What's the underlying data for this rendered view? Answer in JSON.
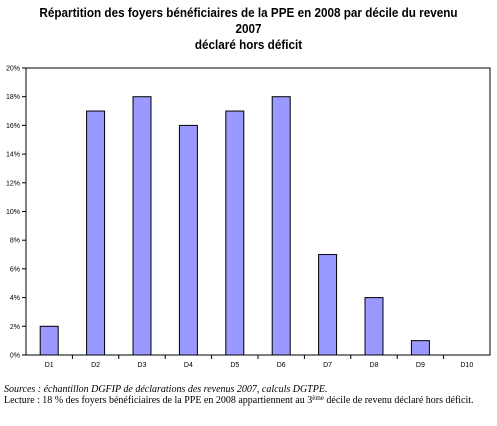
{
  "chart_data": {
    "type": "bar",
    "title": "Répartition des foyers bénéficiaires de la PPE en 2008 par décile du revenu 2007",
    "subtitle": "déclaré hors déficit",
    "categories": [
      "D1",
      "D2",
      "D3",
      "D4",
      "D5",
      "D6",
      "D7",
      "D8",
      "D9",
      "D10"
    ],
    "values": [
      2,
      17,
      18,
      16,
      17,
      18,
      7,
      4,
      1,
      0
    ],
    "ylim": [
      0,
      20
    ],
    "yticks": [
      "0%",
      "2%",
      "4%",
      "6%",
      "8%",
      "10%",
      "12%",
      "14%",
      "16%",
      "18%",
      "20%"
    ],
    "grid": false,
    "legend": "none",
    "bar_color": "#9999ff",
    "bar_edge_color": "#000000"
  },
  "notes": {
    "source": "Sources : échantillon DGFIP de déclarations des revenus 2007, calculs DGTPE.",
    "reading_prefix": "Lecture : 18 % des foyers bénéficiaires de la PPE en 2008 appartiennent au 3",
    "reading_sup": "ème",
    "reading_suffix": " décile de revenu déclaré hors déficit."
  }
}
